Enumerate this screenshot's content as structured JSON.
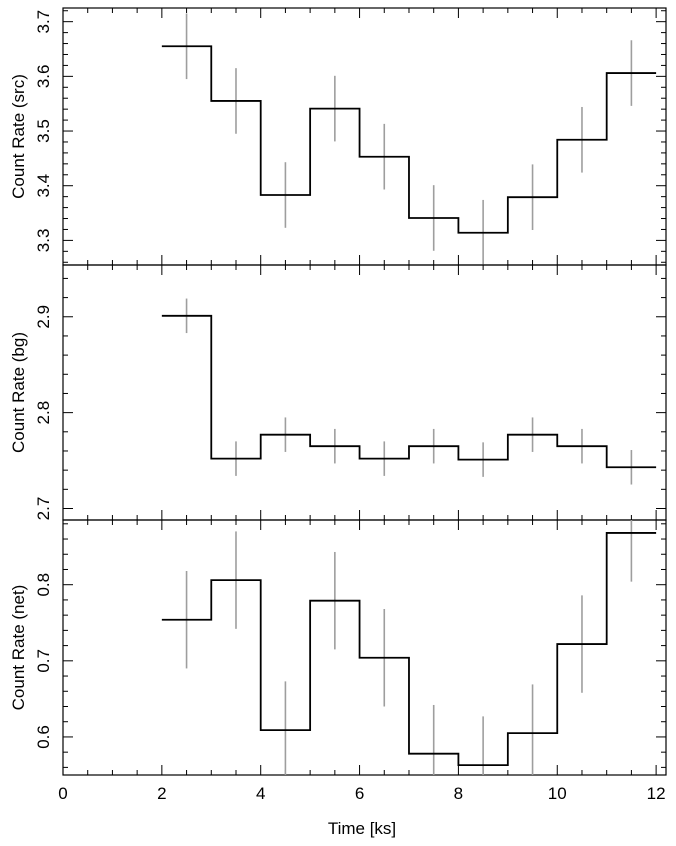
{
  "chart_data": [
    {
      "type": "line",
      "panel": "src",
      "xlabel": "Time [ks]",
      "ylabel": "Count Rate (src)",
      "xlim": [
        0,
        12.2
      ],
      "ylim": [
        3.255,
        3.725
      ],
      "x_ticks": [
        0,
        2,
        4,
        6,
        8,
        10,
        12
      ],
      "y_ticks": [
        3.3,
        3.4,
        3.5,
        3.6,
        3.7
      ],
      "x_tick_labels_shown": false,
      "step_color": "#000000",
      "error_color": "#9e9e9e",
      "series": [
        {
          "bin_width": 1,
          "x": [
            2.5,
            3.5,
            4.5,
            5.5,
            6.5,
            7.5,
            8.5,
            9.5,
            10.5,
            11.5
          ],
          "y": [
            3.655,
            3.555,
            3.383,
            3.541,
            3.453,
            3.341,
            3.314,
            3.379,
            3.484,
            3.606
          ],
          "yerr": [
            0.06,
            0.06,
            0.06,
            0.06,
            0.06,
            0.06,
            0.06,
            0.06,
            0.06,
            0.06
          ]
        }
      ]
    },
    {
      "type": "line",
      "panel": "bg",
      "xlabel": "Time [ks]",
      "ylabel": "Count Rate (bg)",
      "xlim": [
        0,
        12.2
      ],
      "ylim": [
        2.688,
        2.954
      ],
      "x_ticks": [
        0,
        2,
        4,
        6,
        8,
        10,
        12
      ],
      "y_ticks": [
        2.7,
        2.8,
        2.9
      ],
      "x_tick_labels_shown": false,
      "step_color": "#000000",
      "error_color": "#9e9e9e",
      "series": [
        {
          "bin_width": 1,
          "x": [
            2.5,
            3.5,
            4.5,
            5.5,
            6.5,
            7.5,
            8.5,
            9.5,
            10.5,
            11.5
          ],
          "y": [
            2.901,
            2.752,
            2.777,
            2.765,
            2.752,
            2.765,
            2.751,
            2.777,
            2.765,
            2.743
          ],
          "yerr": [
            0.018,
            0.018,
            0.018,
            0.018,
            0.018,
            0.018,
            0.018,
            0.018,
            0.018,
            0.018
          ]
        }
      ]
    },
    {
      "type": "line",
      "panel": "net",
      "xlabel": "Time [ks]",
      "ylabel": "Count Rate (net)",
      "xlim": [
        0,
        12.2
      ],
      "ylim": [
        0.55,
        0.885
      ],
      "x_ticks": [
        0,
        2,
        4,
        6,
        8,
        10,
        12
      ],
      "y_ticks": [
        0.6,
        0.7,
        0.8
      ],
      "x_tick_labels_shown": true,
      "step_color": "#000000",
      "error_color": "#9e9e9e",
      "series": [
        {
          "bin_width": 1,
          "x": [
            2.5,
            3.5,
            4.5,
            5.5,
            6.5,
            7.5,
            8.5,
            9.5,
            10.5,
            11.5
          ],
          "y": [
            0.754,
            0.806,
            0.609,
            0.779,
            0.704,
            0.578,
            0.563,
            0.605,
            0.722,
            0.868
          ],
          "yerr": [
            0.064,
            0.064,
            0.064,
            0.064,
            0.064,
            0.064,
            0.064,
            0.064,
            0.064,
            0.064
          ]
        }
      ]
    }
  ]
}
